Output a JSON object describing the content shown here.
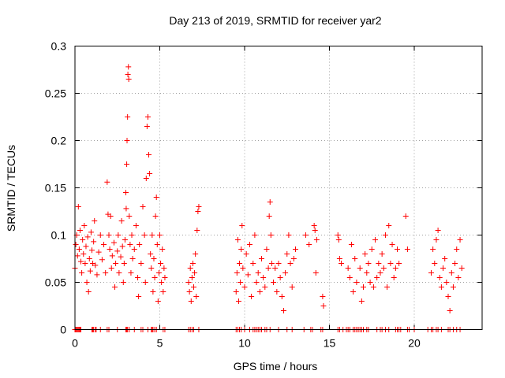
{
  "chart_data": {
    "type": "scatter",
    "title": "Day 213 of 2019, SRMTID for receiver yar2",
    "xlabel": "GPS time / hours",
    "ylabel": "SRMTID / TECUs",
    "xlim": [
      0,
      24
    ],
    "ylim": [
      0,
      0.3
    ],
    "xticks": [
      0,
      5,
      10,
      15,
      20
    ],
    "yticks": [
      0,
      0.05,
      0.1,
      0.15,
      0.2,
      0.25,
      0.3
    ],
    "xtick_labels": [
      "0",
      "5",
      "10",
      "15",
      "20"
    ],
    "ytick_labels": [
      "0",
      "0.05",
      "0.1",
      "0.15",
      "0.2",
      "0.25",
      "0.3"
    ],
    "grid": true,
    "marker": "+",
    "color": "#ff0000",
    "series": [
      {
        "name": "SRMTID",
        "points": [
          [
            0.0,
            0.065
          ],
          [
            0.05,
            0.09
          ],
          [
            0.1,
            0.1
          ],
          [
            0.15,
            0.078
          ],
          [
            0.2,
            0.13
          ],
          [
            0.25,
            0.085
          ],
          [
            0.3,
            0.105
          ],
          [
            0.35,
            0.072
          ],
          [
            0.4,
            0.06
          ],
          [
            0.45,
            0.095
          ],
          [
            0.5,
            0.08
          ],
          [
            0.55,
            0.11
          ],
          [
            0.6,
            0.07
          ],
          [
            0.65,
            0.088
          ],
          [
            0.7,
            0.05
          ],
          [
            0.75,
            0.098
          ],
          [
            0.8,
            0.04
          ],
          [
            0.85,
            0.075
          ],
          [
            0.9,
            0.062
          ],
          [
            0.95,
            0.103
          ],
          [
            1.0,
            0.084
          ],
          [
            1.05,
            0.07
          ],
          [
            1.1,
            0.093
          ],
          [
            1.15,
            0.115
          ],
          [
            1.2,
            0.068
          ],
          [
            1.3,
            0.058
          ],
          [
            1.4,
            0.082
          ],
          [
            1.5,
            0.1
          ],
          [
            1.6,
            0.074
          ],
          [
            1.7,
            0.09
          ],
          [
            1.8,
            0.06
          ],
          [
            1.9,
            0.156
          ],
          [
            1.95,
            0.122
          ],
          [
            2.0,
            0.1
          ],
          [
            2.05,
            0.085
          ],
          [
            2.1,
            0.12
          ],
          [
            2.15,
            0.065
          ],
          [
            2.2,
            0.078
          ],
          [
            2.3,
            0.092
          ],
          [
            2.35,
            0.045
          ],
          [
            2.4,
            0.07
          ],
          [
            2.5,
            0.083
          ],
          [
            2.55,
            0.1
          ],
          [
            2.6,
            0.06
          ],
          [
            2.7,
            0.077
          ],
          [
            2.75,
            0.115
          ],
          [
            2.8,
            0.088
          ],
          [
            2.85,
            0.05
          ],
          [
            2.9,
            0.07
          ],
          [
            2.95,
            0.095
          ],
          [
            3.0,
            0.145
          ],
          [
            3.02,
            0.128
          ],
          [
            3.05,
            0.175
          ],
          [
            3.07,
            0.2
          ],
          [
            3.1,
            0.225
          ],
          [
            3.12,
            0.27
          ],
          [
            3.15,
            0.278
          ],
          [
            3.17,
            0.265
          ],
          [
            3.2,
            0.12
          ],
          [
            3.25,
            0.09
          ],
          [
            3.3,
            0.06
          ],
          [
            3.35,
            0.1
          ],
          [
            3.4,
            0.075
          ],
          [
            3.5,
            0.085
          ],
          [
            3.6,
            0.11
          ],
          [
            3.7,
            0.055
          ],
          [
            3.75,
            0.035
          ],
          [
            3.8,
            0.09
          ],
          [
            3.9,
            0.07
          ],
          [
            4.0,
            0.13
          ],
          [
            4.1,
            0.1
          ],
          [
            4.15,
            0.05
          ],
          [
            4.2,
            0.16
          ],
          [
            4.25,
            0.215
          ],
          [
            4.3,
            0.225
          ],
          [
            4.35,
            0.185
          ],
          [
            4.4,
            0.165
          ],
          [
            4.45,
            0.08
          ],
          [
            4.5,
            0.065
          ],
          [
            4.55,
            0.1
          ],
          [
            4.6,
            0.04
          ],
          [
            4.65,
            0.075
          ],
          [
            4.7,
            0.055
          ],
          [
            4.75,
            0.12
          ],
          [
            4.8,
            0.14
          ],
          [
            4.85,
            0.09
          ],
          [
            4.9,
            0.03
          ],
          [
            4.95,
            0.06
          ],
          [
            5.0,
            0.1
          ],
          [
            5.05,
            0.07
          ],
          [
            5.1,
            0.05
          ],
          [
            5.15,
            0.085
          ],
          [
            5.2,
            0.04
          ],
          [
            5.25,
            0.065
          ],
          [
            5.3,
            0.055
          ],
          [
            6.7,
            0.05
          ],
          [
            6.75,
            0.04
          ],
          [
            6.8,
            0.065
          ],
          [
            6.85,
            0.03
          ],
          [
            6.9,
            0.055
          ],
          [
            6.95,
            0.07
          ],
          [
            7.0,
            0.045
          ],
          [
            7.05,
            0.06
          ],
          [
            7.1,
            0.08
          ],
          [
            7.15,
            0.035
          ],
          [
            7.2,
            0.105
          ],
          [
            7.25,
            0.125
          ],
          [
            7.3,
            0.13
          ],
          [
            9.5,
            0.04
          ],
          [
            9.55,
            0.06
          ],
          [
            9.6,
            0.095
          ],
          [
            9.65,
            0.03
          ],
          [
            9.7,
            0.07
          ],
          [
            9.75,
            0.05
          ],
          [
            9.8,
            0.085
          ],
          [
            9.85,
            0.11
          ],
          [
            9.9,
            0.065
          ],
          [
            10.0,
            0.045
          ],
          [
            10.1,
            0.08
          ],
          [
            10.2,
            0.058
          ],
          [
            10.3,
            0.09
          ],
          [
            10.4,
            0.035
          ],
          [
            10.5,
            0.07
          ],
          [
            10.6,
            0.1
          ],
          [
            10.7,
            0.05
          ],
          [
            10.8,
            0.06
          ],
          [
            10.9,
            0.04
          ],
          [
            11.0,
            0.075
          ],
          [
            11.1,
            0.055
          ],
          [
            11.2,
            0.045
          ],
          [
            11.3,
            0.085
          ],
          [
            11.4,
            0.065
          ],
          [
            11.45,
            0.12
          ],
          [
            11.5,
            0.135
          ],
          [
            11.55,
            0.1
          ],
          [
            11.6,
            0.07
          ],
          [
            11.7,
            0.05
          ],
          [
            11.8,
            0.065
          ],
          [
            11.9,
            0.04
          ],
          [
            12.0,
            0.07
          ],
          [
            12.1,
            0.055
          ],
          [
            12.2,
            0.035
          ],
          [
            12.3,
            0.02
          ],
          [
            12.4,
            0.06
          ],
          [
            12.5,
            0.08
          ],
          [
            12.6,
            0.1
          ],
          [
            12.7,
            0.07
          ],
          [
            12.8,
            0.045
          ],
          [
            12.9,
            0.075
          ],
          [
            13.0,
            0.085
          ],
          [
            13.6,
            0.1
          ],
          [
            13.8,
            0.09
          ],
          [
            14.1,
            0.11
          ],
          [
            14.15,
            0.105
          ],
          [
            14.2,
            0.06
          ],
          [
            14.25,
            0.095
          ],
          [
            14.6,
            0.035
          ],
          [
            14.65,
            0.025
          ],
          [
            15.5,
            0.1
          ],
          [
            15.55,
            0.095
          ],
          [
            15.6,
            0.075
          ],
          [
            15.7,
            0.07
          ],
          [
            16.1,
            0.065
          ],
          [
            16.2,
            0.055
          ],
          [
            16.3,
            0.09
          ],
          [
            16.4,
            0.04
          ],
          [
            16.5,
            0.075
          ],
          [
            16.6,
            0.05
          ],
          [
            16.8,
            0.065
          ],
          [
            16.9,
            0.03
          ],
          [
            17.0,
            0.045
          ],
          [
            17.1,
            0.08
          ],
          [
            17.2,
            0.06
          ],
          [
            17.3,
            0.07
          ],
          [
            17.4,
            0.05
          ],
          [
            17.5,
            0.085
          ],
          [
            17.6,
            0.045
          ],
          [
            17.7,
            0.095
          ],
          [
            17.8,
            0.055
          ],
          [
            17.9,
            0.07
          ],
          [
            18.0,
            0.06
          ],
          [
            18.1,
            0.08
          ],
          [
            18.2,
            0.065
          ],
          [
            18.3,
            0.1
          ],
          [
            18.4,
            0.045
          ],
          [
            18.5,
            0.11
          ],
          [
            18.6,
            0.07
          ],
          [
            18.7,
            0.09
          ],
          [
            18.8,
            0.055
          ],
          [
            18.9,
            0.065
          ],
          [
            19.0,
            0.085
          ],
          [
            19.1,
            0.07
          ],
          [
            19.5,
            0.12
          ],
          [
            19.6,
            0.085
          ],
          [
            21.0,
            0.06
          ],
          [
            21.1,
            0.085
          ],
          [
            21.2,
            0.07
          ],
          [
            21.3,
            0.095
          ],
          [
            21.4,
            0.105
          ],
          [
            21.5,
            0.055
          ],
          [
            21.6,
            0.045
          ],
          [
            21.7,
            0.065
          ],
          [
            21.8,
            0.075
          ],
          [
            21.9,
            0.05
          ],
          [
            22.0,
            0.035
          ],
          [
            22.1,
            0.02
          ],
          [
            22.2,
            0.06
          ],
          [
            22.3,
            0.045
          ],
          [
            22.4,
            0.07
          ],
          [
            22.5,
            0.085
          ],
          [
            22.6,
            0.055
          ],
          [
            22.7,
            0.095
          ],
          [
            22.8,
            0.065
          ]
        ],
        "zero_points_x": [
          0.0,
          0.05,
          0.1,
          0.15,
          0.2,
          0.25,
          0.3,
          0.35,
          1.0,
          1.05,
          1.1,
          1.2,
          1.25,
          1.5,
          1.9,
          2.0,
          2.5,
          3.0,
          3.05,
          3.1,
          3.2,
          3.5,
          3.9,
          4.0,
          4.3,
          4.5,
          4.55,
          4.6,
          4.7,
          4.8,
          5.2,
          5.3,
          6.7,
          6.8,
          6.9,
          7.0,
          7.3,
          9.5,
          9.6,
          9.7,
          9.8,
          10.0,
          10.3,
          10.5,
          10.6,
          10.7,
          10.8,
          10.9,
          11.0,
          11.2,
          11.3,
          11.5,
          12.0,
          12.5,
          12.8,
          13.5,
          13.9,
          14.0,
          14.5,
          14.6,
          15.5,
          15.6,
          15.8,
          16.0,
          16.1,
          16.2,
          16.4,
          16.5,
          16.6,
          16.7,
          16.8,
          16.9,
          17.0,
          17.2,
          17.3,
          17.8,
          18.0,
          18.1,
          18.3,
          18.5,
          18.9,
          19.0,
          19.1,
          19.2,
          19.6,
          19.7,
          20.0,
          20.8,
          21.0,
          21.1,
          21.3,
          21.4,
          21.6,
          22.0,
          22.1,
          22.3,
          22.5,
          22.7
        ]
      }
    ]
  }
}
